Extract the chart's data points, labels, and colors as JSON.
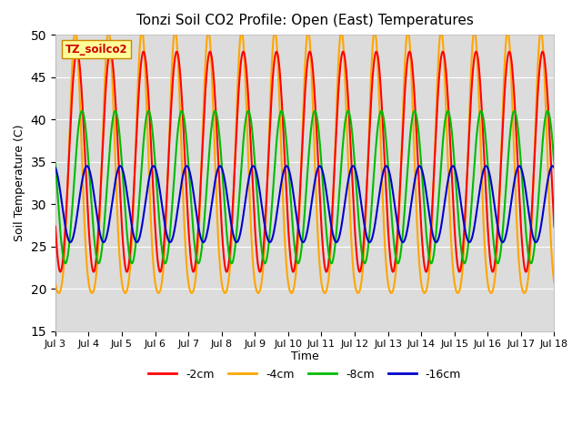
{
  "title": "Tonzi Soil CO2 Profile: Open (East) Temperatures",
  "ylabel": "Soil Temperature (C)",
  "xlabel": "Time",
  "xlim": [
    0,
    15
  ],
  "ylim": [
    15,
    50
  ],
  "yticks": [
    15,
    20,
    25,
    30,
    35,
    40,
    45,
    50
  ],
  "xtick_labels": [
    "Jul 3",
    "Jul 4",
    "Jul 5",
    "Jul 6",
    "Jul 7",
    "Jul 8",
    "Jul 9",
    "Jul 10",
    "Jul 11",
    "Jul 12",
    "Jul 13",
    "Jul 14",
    "Jul 15",
    "Jul 16",
    "Jul 17",
    "Jul 18"
  ],
  "xtick_positions": [
    0,
    1,
    2,
    3,
    4,
    5,
    6,
    7,
    8,
    9,
    10,
    11,
    12,
    13,
    14,
    15
  ],
  "colors": {
    "2cm": "#FF0000",
    "4cm": "#FFA500",
    "8cm": "#00BB00",
    "16cm": "#0000CC"
  },
  "labels": {
    "2cm": "-2cm",
    "4cm": "-4cm",
    "8cm": "-8cm",
    "16cm": "-16cm"
  },
  "label_box_text": "TZ_soilco2",
  "label_box_color": "#FFFF99",
  "label_box_text_color": "#CC0000",
  "plot_bg_color": "#DCDCDC",
  "linewidth": 1.5
}
